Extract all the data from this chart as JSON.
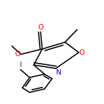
{
  "bg_color": "#ffffff",
  "line_color": "#000000",
  "atom_colors": {
    "O": "#ff0000",
    "N": "#0000ff",
    "I": "#8b008b",
    "C": "#000000"
  },
  "bond_width": 1.2,
  "font_size": 7.5,
  "figsize": [
    1.52,
    1.52
  ],
  "dpi": 100
}
